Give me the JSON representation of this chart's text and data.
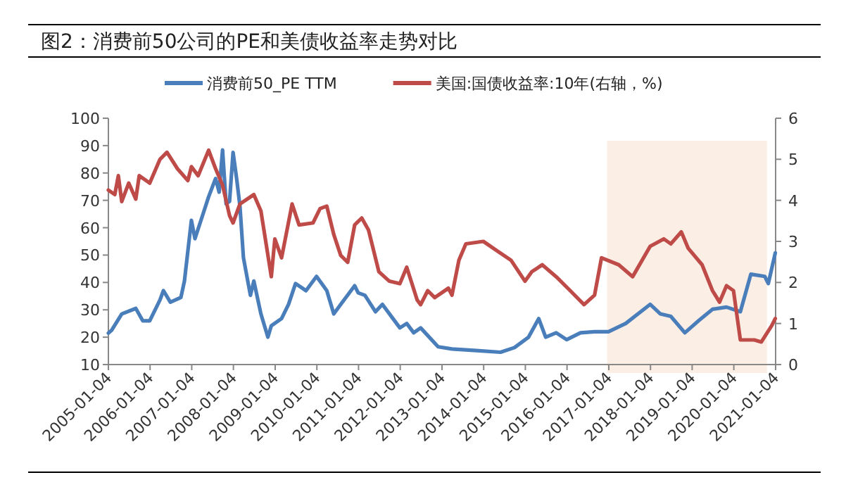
{
  "chart_data": {
    "type": "line",
    "title": "图2：消费前50公司的PE和美债收益率走势对比",
    "legend": "top",
    "grid": false,
    "marker": "none",
    "line_style": "solid",
    "xlim": [
      "2005-01-04",
      "2021-01-04"
    ],
    "xticks": [
      "2005-01-04",
      "2006-01-04",
      "2007-01-04",
      "2008-01-04",
      "2009-01-04",
      "2010-01-04",
      "2011-01-04",
      "2012-01-04",
      "2013-01-04",
      "2014-01-04",
      "2015-01-04",
      "2016-01-04",
      "2017-01-04",
      "2018-01-04",
      "2019-01-04",
      "2020-01-04",
      "2021-01-04"
    ],
    "ylim": [
      10,
      100
    ],
    "yticks": [
      10,
      20,
      30,
      40,
      50,
      60,
      70,
      80,
      90,
      100
    ],
    "y2lim": [
      0,
      6
    ],
    "y2ticks": [
      0,
      1,
      2,
      3,
      4,
      5,
      6
    ],
    "bands": [
      {
        "axis": "x",
        "from": "2016-12-20",
        "to": "2020-10-20",
        "color": "#fbeee5"
      }
    ],
    "series": [
      {
        "name": "消费前50_PE TTM",
        "color": "#4a7ebb",
        "x": [
          "2005-01-04",
          "2005-02",
          "2005-05",
          "2005-09",
          "2005-11",
          "2006-01",
          "2006-04",
          "2006-05",
          "2006-07",
          "2006-10",
          "2006-11",
          "2007-01",
          "2007-02",
          "2007-04",
          "2007-06",
          "2007-08",
          "2007-09",
          "2007-10",
          "2007-11",
          "2007-12",
          "2008-01",
          "2008-02",
          "2008-03",
          "2008-04",
          "2008-06",
          "2008-07",
          "2008-09",
          "2008-11",
          "2008-12",
          "2009-03",
          "2009-05",
          "2009-07",
          "2009-10",
          "2010-01",
          "2010-03",
          "2010-04",
          "2010-06",
          "2010-08",
          "2010-12",
          "2011-01",
          "2011-03",
          "2011-06",
          "2011-08",
          "2011-11",
          "2012-01",
          "2012-03",
          "2012-05",
          "2012-07",
          "2012-12",
          "2013-04",
          "2013-11",
          "2014-06",
          "2014-10",
          "2015-02",
          "2015-05",
          "2015-07",
          "2015-10",
          "2016-01",
          "2016-05",
          "2016-09",
          "2017-01",
          "2017-06",
          "2018-01",
          "2018-04",
          "2018-07",
          "2018-11",
          "2019-03",
          "2019-07",
          "2019-11",
          "2020-03",
          "2020-06",
          "2020-10",
          "2020-11",
          "2021-01"
        ],
        "values": [
          21.5,
          22.5,
          28.5,
          30.5,
          26,
          26,
          33.6,
          37,
          32.8,
          34.5,
          40.5,
          62.7,
          56,
          63.5,
          71.3,
          78,
          73,
          88.4,
          68.7,
          69.6,
          87.5,
          78,
          68,
          49,
          35.3,
          40.5,
          28.5,
          20,
          24.2,
          26.8,
          32,
          39.6,
          37,
          42.2,
          38.8,
          37,
          28.5,
          32,
          38.8,
          36.2,
          35.3,
          29.3,
          32,
          26.8,
          23.4,
          25,
          21.6,
          23.4,
          16.5,
          15.7,
          15.1,
          14.5,
          16.2,
          20,
          26.8,
          20,
          21.6,
          19.1,
          21.6,
          22,
          22,
          25,
          32,
          28.5,
          27.6,
          21.6,
          26,
          30.2,
          31,
          29.3,
          43,
          42.2,
          39.6,
          50.8
        ]
      },
      {
        "name": "美国:国债收益率:10年(右轴，%)",
        "color": "#be4b48",
        "axis": "y2",
        "x": [
          "2005-01-04",
          "2005-03",
          "2005-04",
          "2005-05",
          "2005-07",
          "2005-09",
          "2005-10",
          "2006-01",
          "2006-04",
          "2006-06",
          "2006-09",
          "2006-12",
          "2007-01",
          "2007-03",
          "2007-06",
          "2007-08",
          "2007-10",
          "2007-12",
          "2008-01",
          "2008-03",
          "2008-07",
          "2008-09",
          "2008-12",
          "2009-01",
          "2009-03",
          "2009-06",
          "2009-08",
          "2009-12",
          "2010-02",
          "2010-04",
          "2010-06",
          "2010-08",
          "2010-10",
          "2010-12",
          "2011-02",
          "2011-04",
          "2011-07",
          "2011-10",
          "2012-01",
          "2012-03",
          "2012-06",
          "2012-07",
          "2012-09",
          "2012-11",
          "2013-03",
          "2013-04",
          "2013-06",
          "2013-08",
          "2014-01",
          "2014-05",
          "2014-09",
          "2015-01",
          "2015-03",
          "2015-06",
          "2015-10",
          "2016-02",
          "2016-06",
          "2016-09",
          "2016-11",
          "2017-04",
          "2017-08",
          "2018-01",
          "2018-05",
          "2018-07",
          "2018-10",
          "2018-12",
          "2019-04",
          "2019-07",
          "2019-09",
          "2019-11",
          "2020-01",
          "2020-03",
          "2020-07",
          "2020-09",
          "2020-12",
          "2021-01"
        ],
        "values": [
          4.25,
          4.14,
          4.6,
          3.97,
          4.42,
          4.03,
          4.6,
          4.42,
          5.0,
          5.17,
          4.77,
          4.48,
          4.82,
          4.6,
          5.22,
          4.77,
          4.37,
          3.63,
          3.45,
          3.91,
          4.14,
          3.74,
          2.14,
          3.06,
          2.6,
          3.91,
          3.4,
          3.45,
          3.8,
          3.86,
          3.17,
          2.66,
          2.49,
          3.4,
          3.57,
          3.28,
          2.26,
          2.03,
          1.97,
          2.37,
          1.57,
          1.46,
          1.8,
          1.63,
          1.86,
          1.69,
          2.54,
          2.94,
          3.0,
          2.77,
          2.54,
          2.03,
          2.26,
          2.43,
          2.14,
          1.8,
          1.46,
          1.69,
          2.6,
          2.43,
          2.14,
          2.88,
          3.06,
          2.94,
          3.23,
          2.83,
          2.43,
          1.8,
          1.52,
          1.92,
          1.8,
          0.6,
          0.6,
          0.55,
          0.95,
          1.12
        ]
      }
    ]
  }
}
